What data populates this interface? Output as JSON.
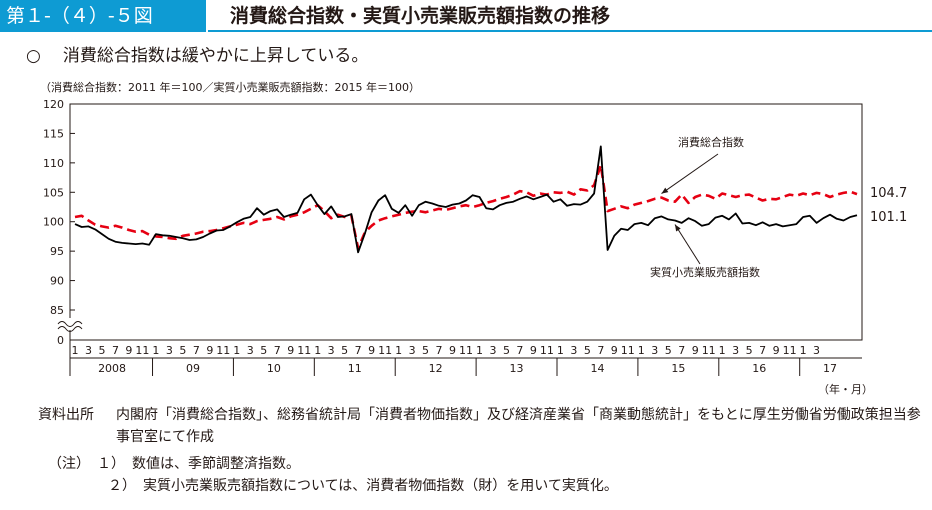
{
  "figure": {
    "number": "第１-（４）-５図",
    "title": "消費総合指数・実質小売業販売額指数の推移"
  },
  "lead": {
    "mark": "○",
    "text": "消費総合指数は緩やかに上昇している。"
  },
  "base_note": "（消費総合指数：2011 年＝100／実質小売業販売額指数：2015 年＝100）",
  "unit_label": "（年・月）",
  "source": {
    "label": "資料出所",
    "text": "内閣府「消費総合指数」、総務省統計局「消費者物価指数」及び経済産業省「商業動態統計」をもとに厚生労働省労働政策担当参事官室にて作成"
  },
  "notes": [
    "（注）　１）　数値は、季節調整済指数。",
    "２）　実質小売業販売額指数については、消費者物価指数（財）を用いて実質化。"
  ],
  "chart_data": {
    "type": "line",
    "yticks": [
      "0",
      "85",
      "90",
      "95",
      "100",
      "105",
      "110",
      "115",
      "120"
    ],
    "axis_break": true,
    "ylim": [
      80,
      120
    ],
    "month_ticks": [
      "1",
      "3",
      "5",
      "7",
      "9",
      "11"
    ],
    "years": [
      "2008",
      "09",
      "10",
      "11",
      "12",
      "13",
      "14",
      "15",
      "16",
      "17"
    ],
    "last_year_months": [
      "1",
      "3"
    ],
    "colors": {
      "consumption": "#e60012",
      "retail": "#000000"
    },
    "series": [
      {
        "name": "消費総合指数",
        "end_label": "104.7",
        "values": [
          100.8,
          101.0,
          100.2,
          99.5,
          99.2,
          99.0,
          99.3,
          99.0,
          98.6,
          98.3,
          98.4,
          97.8,
          97.5,
          97.4,
          97.2,
          97.1,
          97.6,
          97.8,
          98.0,
          98.3,
          98.4,
          98.6,
          98.9,
          99.2,
          99.5,
          99.8,
          99.6,
          100.1,
          100.3,
          100.5,
          100.8,
          100.4,
          100.9,
          101.2,
          101.6,
          102.2,
          102.8,
          101.8,
          100.6,
          101.2,
          100.8,
          101.0,
          95.5,
          98.2,
          99.3,
          100.2,
          100.6,
          100.9,
          101.2,
          101.5,
          101.7,
          101.8,
          101.6,
          101.9,
          102.2,
          102.0,
          102.3,
          102.6,
          102.8,
          102.5,
          102.8,
          103.2,
          103.5,
          103.9,
          104.2,
          104.6,
          105.2,
          105.0,
          104.4,
          104.8,
          104.6,
          105.0,
          104.9,
          105.1,
          104.6,
          105.5,
          105.3,
          106.2,
          109.6,
          101.8,
          102.2,
          102.6,
          102.3,
          102.9,
          103.2,
          103.5,
          103.9,
          104.1,
          103.6,
          103.4,
          104.6,
          103.2,
          104.2,
          104.6,
          104.4,
          103.9,
          104.8,
          104.5,
          104.2,
          104.5,
          104.6,
          104.1,
          103.6,
          103.9,
          103.8,
          104.2,
          104.6,
          104.4,
          104.8,
          104.5,
          104.9,
          104.7,
          104.2,
          104.6,
          104.9,
          105.1,
          104.7
        ]
      },
      {
        "name": "実質小売業販売額指数",
        "end_label": "101.1",
        "values": [
          99.6,
          99.1,
          99.2,
          98.7,
          97.9,
          97.1,
          96.6,
          96.4,
          96.3,
          96.2,
          96.3,
          96.1,
          97.9,
          97.7,
          97.6,
          97.4,
          97.2,
          96.9,
          97.0,
          97.4,
          98.0,
          98.5,
          98.6,
          99.2,
          99.9,
          100.5,
          100.8,
          102.3,
          101.2,
          101.8,
          102.1,
          100.8,
          101.2,
          101.5,
          103.8,
          104.6,
          102.8,
          101.3,
          102.6,
          100.8,
          100.9,
          101.3,
          94.8,
          98.0,
          101.6,
          103.6,
          104.5,
          102.2,
          101.5,
          102.8,
          101.0,
          102.8,
          103.4,
          103.1,
          102.7,
          102.5,
          102.9,
          103.1,
          103.6,
          104.5,
          104.2,
          102.3,
          102.1,
          102.8,
          103.2,
          103.4,
          103.9,
          104.3,
          103.8,
          104.2,
          104.6,
          103.4,
          103.8,
          102.7,
          103.0,
          102.9,
          103.4,
          104.8,
          112.8,
          95.2,
          97.6,
          98.8,
          98.6,
          99.6,
          99.8,
          99.4,
          100.6,
          100.9,
          100.4,
          100.2,
          99.8,
          100.6,
          100.1,
          99.3,
          99.6,
          100.7,
          101.0,
          100.4,
          101.4,
          99.7,
          99.8,
          99.4,
          99.9,
          99.3,
          99.6,
          99.2,
          99.4,
          99.6,
          100.8,
          101.0,
          99.8,
          100.6,
          101.2,
          100.5,
          100.2,
          100.8,
          101.1
        ]
      }
    ],
    "callouts": [
      {
        "series": 0,
        "text": "消費総合指数",
        "month": 87
      },
      {
        "series": 1,
        "text": "実質小売業販売額指数",
        "month": 89
      }
    ]
  }
}
